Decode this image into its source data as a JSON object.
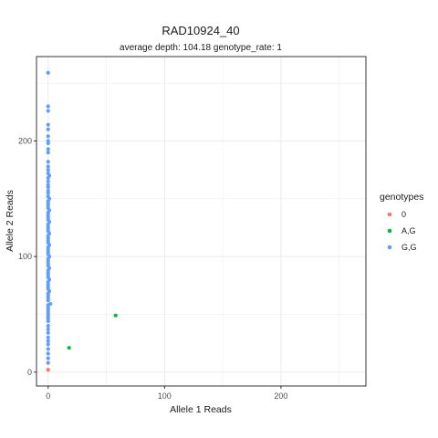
{
  "chart_data": {
    "type": "scatter",
    "title": "RAD10924_40",
    "subtitle": "average depth:  104.18  genotype_rate:  1",
    "xlabel": "Allele 1 Reads",
    "ylabel": "Allele 2 Reads",
    "xlim": [
      -10,
      273
    ],
    "ylim": [
      -12,
      273
    ],
    "x_ticks": [
      0,
      100,
      200
    ],
    "y_ticks": [
      0,
      100,
      200
    ],
    "x_tick_labels": [
      "0",
      "100",
      "200"
    ],
    "y_tick_labels": [
      "0",
      "100",
      "200"
    ],
    "grid": true,
    "legend_position": "right",
    "legend_title": "genotypes",
    "series": [
      {
        "name": "0",
        "color": "#F8766D",
        "points": [
          [
            0,
            2
          ]
        ]
      },
      {
        "name": "A,G",
        "color": "#00BA38",
        "points": [
          [
            58,
            49
          ],
          [
            18,
            21
          ]
        ]
      },
      {
        "name": "G,G",
        "color": "#619CFF",
        "points": [
          [
            0,
            259
          ],
          [
            0,
            230
          ],
          [
            0,
            226
          ],
          [
            0,
            214
          ],
          [
            0,
            210
          ],
          [
            0,
            204
          ],
          [
            0,
            200
          ],
          [
            0,
            198
          ],
          [
            0,
            193
          ],
          [
            0,
            190
          ],
          [
            0,
            182
          ],
          [
            0,
            178
          ],
          [
            0,
            175
          ],
          [
            0,
            172
          ],
          [
            1,
            170
          ],
          [
            0,
            168
          ],
          [
            0,
            165
          ],
          [
            0,
            162
          ],
          [
            0,
            160
          ],
          [
            0,
            157
          ],
          [
            0,
            155
          ],
          [
            0,
            152
          ],
          [
            1,
            150
          ],
          [
            0,
            148
          ],
          [
            0,
            146
          ],
          [
            0,
            144
          ],
          [
            0,
            142
          ],
          [
            1,
            140
          ],
          [
            0,
            138
          ],
          [
            0,
            136
          ],
          [
            0,
            134
          ],
          [
            0,
            132
          ],
          [
            1,
            130
          ],
          [
            0,
            128
          ],
          [
            0,
            126
          ],
          [
            0,
            124
          ],
          [
            0,
            122
          ],
          [
            1,
            120
          ],
          [
            0,
            118
          ],
          [
            0,
            116
          ],
          [
            0,
            114
          ],
          [
            0,
            112
          ],
          [
            1,
            110
          ],
          [
            0,
            108
          ],
          [
            0,
            106
          ],
          [
            0,
            104
          ],
          [
            0,
            102
          ],
          [
            1,
            100
          ],
          [
            0,
            98
          ],
          [
            0,
            96
          ],
          [
            0,
            94
          ],
          [
            0,
            92
          ],
          [
            1,
            90
          ],
          [
            0,
            88
          ],
          [
            0,
            86
          ],
          [
            0,
            84
          ],
          [
            0,
            82
          ],
          [
            1,
            80
          ],
          [
            0,
            78
          ],
          [
            0,
            76
          ],
          [
            0,
            74
          ],
          [
            0,
            72
          ],
          [
            1,
            70
          ],
          [
            0,
            68
          ],
          [
            0,
            66
          ],
          [
            0,
            64
          ],
          [
            0,
            62
          ],
          [
            2,
            59
          ],
          [
            0,
            58
          ],
          [
            0,
            56
          ],
          [
            0,
            54
          ],
          [
            0,
            52
          ],
          [
            0,
            50
          ],
          [
            0,
            48
          ],
          [
            0,
            46
          ],
          [
            0,
            44
          ],
          [
            0,
            40
          ],
          [
            0,
            37
          ],
          [
            0,
            34
          ],
          [
            0,
            30
          ],
          [
            0,
            27
          ],
          [
            0,
            24
          ],
          [
            0,
            20
          ],
          [
            0,
            16
          ],
          [
            0,
            12
          ],
          [
            0,
            8
          ]
        ]
      }
    ]
  }
}
